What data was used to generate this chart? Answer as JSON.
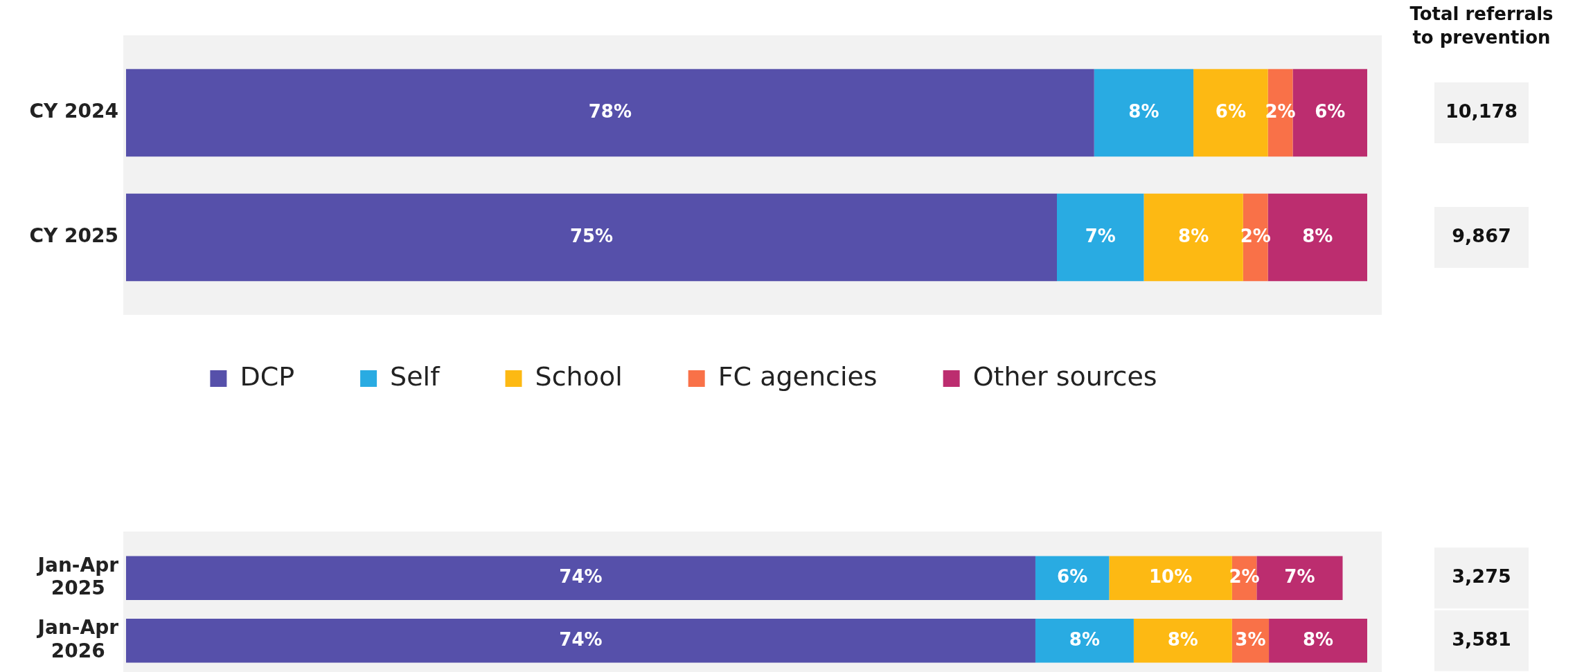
{
  "chart_data": [
    {
      "type": "bar",
      "orientation": "horizontal",
      "stacked": true,
      "legend": "bottom",
      "categories": [
        "CY 2024",
        "CY 2025"
      ],
      "series": [
        {
          "name": "DCP",
          "color": "#5650aa",
          "values": [
            78,
            75
          ],
          "value_labels": [
            "78%",
            "75%"
          ]
        },
        {
          "name": "Self",
          "color": "#29abe2",
          "values": [
            8,
            7
          ],
          "value_labels": [
            "8%",
            "7%"
          ]
        },
        {
          "name": "School",
          "color": "#fdb913",
          "values": [
            6,
            8
          ],
          "value_labels": [
            "6%",
            "8%"
          ]
        },
        {
          "name": "FC agencies",
          "color": "#f97148",
          "values": [
            2,
            2
          ],
          "value_labels": [
            "2%",
            "2%"
          ]
        },
        {
          "name": "Other sources",
          "color": "#bc2d6f",
          "values": [
            6,
            8
          ],
          "value_labels": [
            "6%",
            "8%"
          ]
        }
      ],
      "annotations": [
        "Total referrals to prevention",
        "10,178",
        "9,867"
      ]
    },
    {
      "type": "bar",
      "orientation": "horizontal",
      "stacked": true,
      "categories": [
        "Jan-Apr 2025",
        "Jan-Apr 2026"
      ],
      "series": [
        {
          "color": "#5650aa",
          "values": [
            74,
            74
          ],
          "value_labels": [
            "74%",
            "74%"
          ]
        },
        {
          "color": "#29abe2",
          "values": [
            6,
            8
          ],
          "value_labels": [
            "6%",
            "8%"
          ]
        },
        {
          "color": "#fdb913",
          "values": [
            10,
            8
          ],
          "value_labels": [
            "10%",
            "8%"
          ]
        },
        {
          "color": "#f97148",
          "values": [
            2,
            3
          ],
          "value_labels": [
            "2%",
            "3%"
          ]
        },
        {
          "color": "#bc2d6f",
          "values": [
            7,
            8
          ],
          "value_labels": [
            "7%",
            "8%"
          ]
        }
      ],
      "annotations": [
        "3,275",
        "3,581"
      ]
    }
  ]
}
